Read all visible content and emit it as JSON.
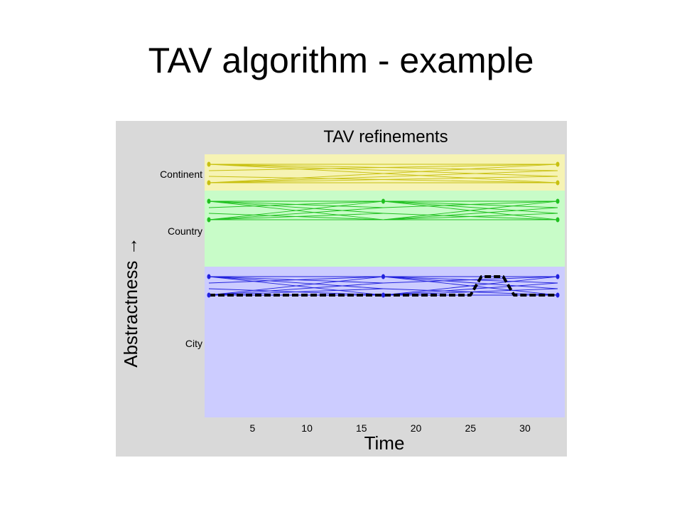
{
  "slide": {
    "title": "TAV algorithm - example"
  },
  "figure": {
    "title": "TAV refinements",
    "xlabel": "Time",
    "ylabel": "Abstractness →",
    "x_ticks": [
      "5",
      "10",
      "15",
      "20",
      "25",
      "30"
    ],
    "bands": [
      {
        "name": "Continent",
        "color": "#f6f3b4",
        "line_color": "#c8c010"
      },
      {
        "name": "Country",
        "color": "#c8fcc8",
        "line_color": "#1fc01f"
      },
      {
        "name": "City",
        "color": "#ccccff",
        "line_color": "#2020dd"
      }
    ]
  },
  "chart_data": {
    "type": "diagram",
    "title": "TAV refinements",
    "xlabel": "Time",
    "ylabel": "Abstractness →",
    "x_ticks": [
      5,
      10,
      15,
      20,
      25,
      30
    ],
    "xlim": [
      1,
      33
    ],
    "levels": [
      "Continent",
      "Country",
      "City"
    ],
    "node_times": {
      "Continent": [
        1,
        33
      ],
      "Country": [
        1,
        17,
        33
      ],
      "City": [
        1,
        17,
        33
      ]
    },
    "highlighted_path": {
      "style": "dashed",
      "color": "#000000",
      "points": [
        [
          1,
          415
        ],
        [
          25,
          415
        ],
        [
          26,
          388
        ],
        [
          28,
          388
        ],
        [
          29,
          415
        ],
        [
          33,
          415
        ]
      ]
    },
    "grid": false
  }
}
